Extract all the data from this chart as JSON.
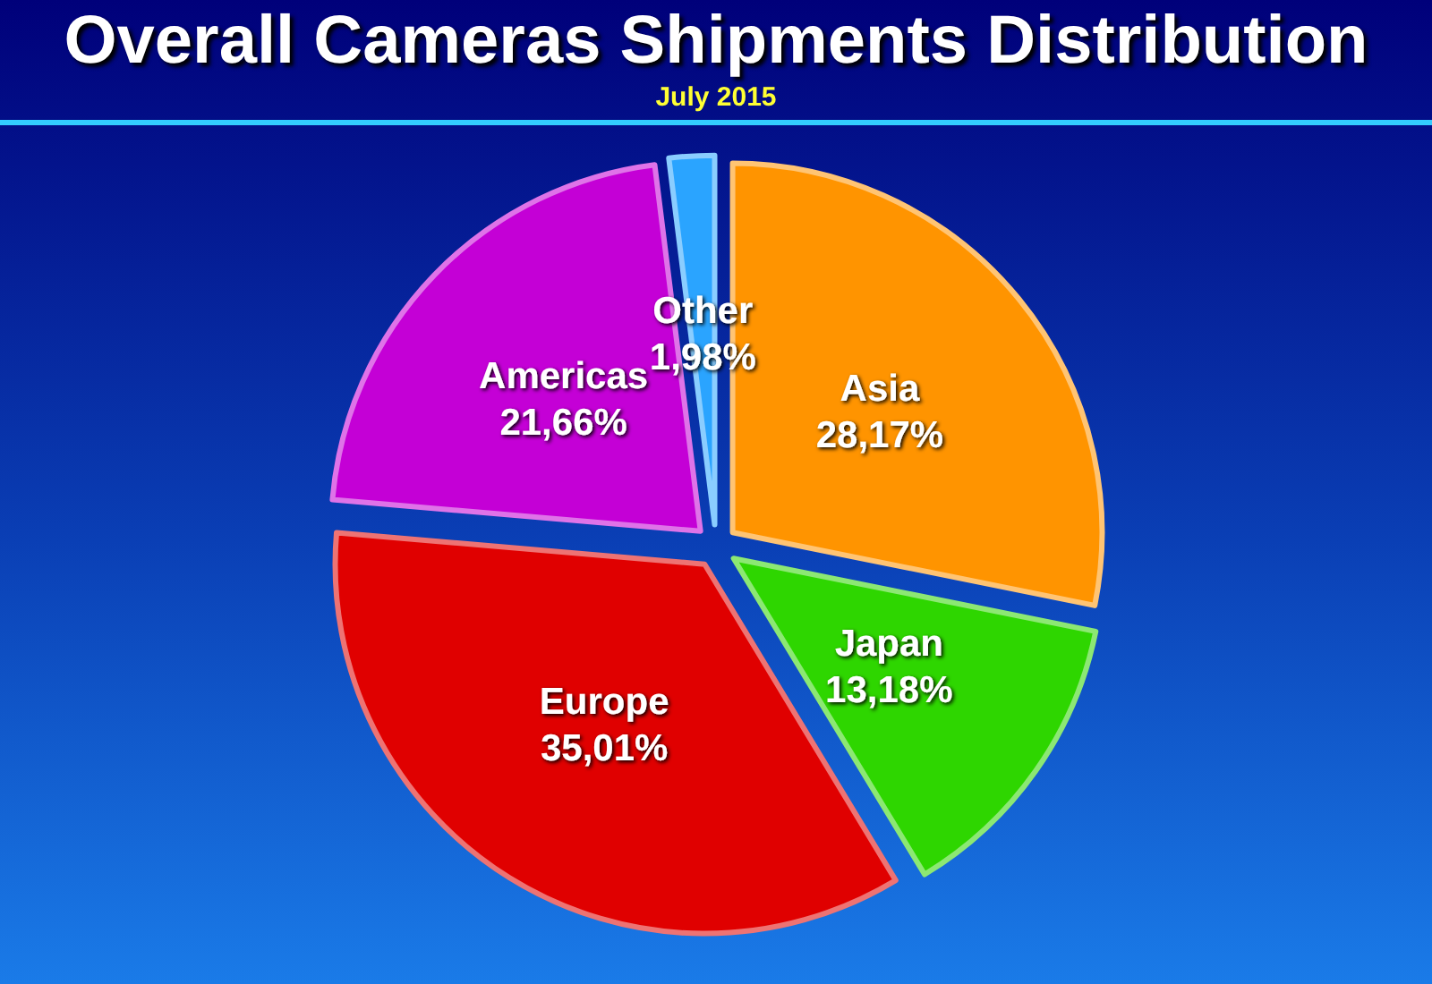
{
  "chart_data": {
    "type": "pie",
    "title": "Overall Cameras Shipments Distribution",
    "subtitle": "July 2015",
    "categories": [
      "Asia",
      "Japan",
      "Europe",
      "Americas",
      "Other"
    ],
    "values": [
      28.17,
      13.18,
      35.01,
      21.66,
      1.98
    ],
    "value_labels": [
      "28,17%",
      "13,18%",
      "35,01%",
      "21,66%",
      "1,98%"
    ],
    "colors": [
      "#ff9400",
      "#2ed600",
      "#e00000",
      "#c400d6",
      "#2aa4ff"
    ],
    "legend": false
  }
}
